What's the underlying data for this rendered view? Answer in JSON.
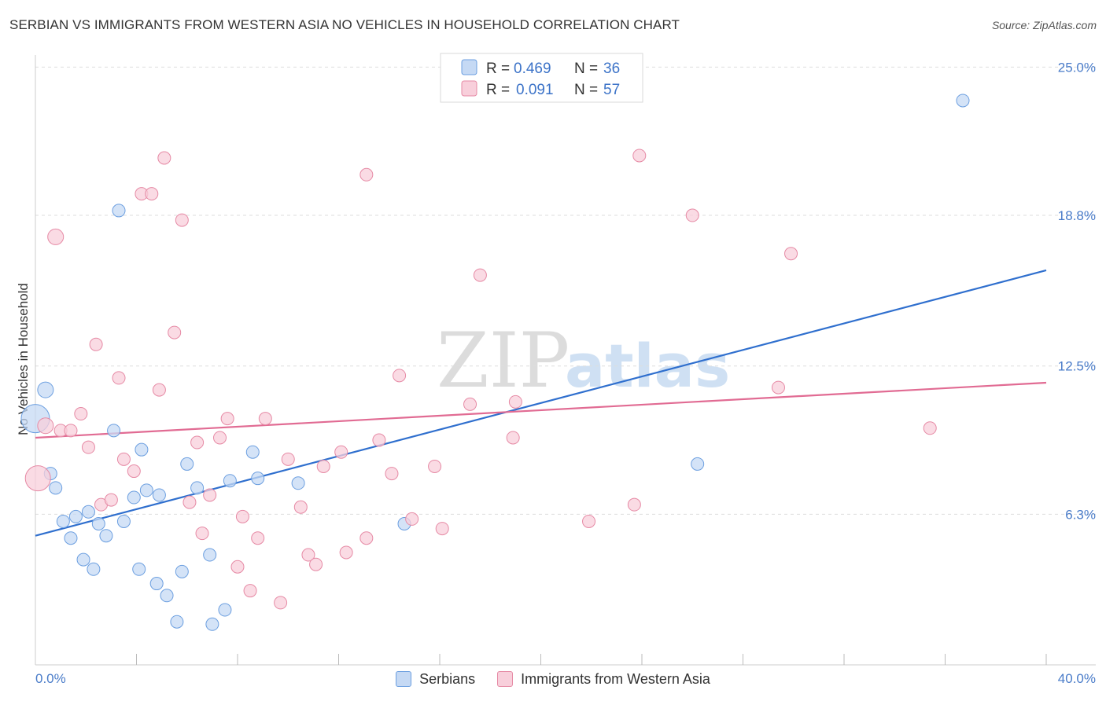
{
  "title": "SERBIAN VS IMMIGRANTS FROM WESTERN ASIA NO VEHICLES IN HOUSEHOLD CORRELATION CHART",
  "source": "Source: ZipAtlas.com",
  "watermark": {
    "zip": "ZIP",
    "atlas": "atlas"
  },
  "legend": {
    "r_label": "R =",
    "n_label": "N =",
    "rows": [
      {
        "r": "0.469",
        "n": "36"
      },
      {
        "r": "0.091",
        "n": "57"
      }
    ]
  },
  "chart_data": {
    "type": "scatter",
    "ylabel": "No Vehicles in Household",
    "xlim": [
      0,
      40
    ],
    "ylim": [
      0,
      25.9
    ],
    "x_tick_labels": [
      "0.0%",
      "40.0%"
    ],
    "y_ticks": [
      {
        "value": 6.3,
        "label": "6.3%"
      },
      {
        "value": 12.5,
        "label": "12.5%"
      },
      {
        "value": 18.8,
        "label": "18.8%"
      },
      {
        "value": 25.0,
        "label": "25.0%"
      }
    ],
    "series": [
      {
        "name": "Serbians",
        "color": "#6c9fe0",
        "fill": "#c5d9f4",
        "line_color": "#2f6fce",
        "trend": {
          "x0": 0,
          "y0": 5.4,
          "x1": 40,
          "y1": 16.5
        },
        "points": [
          [
            0.0,
            10.3,
            18
          ],
          [
            0.4,
            11.5,
            10
          ],
          [
            0.6,
            8.0,
            8
          ],
          [
            0.8,
            7.4,
            8
          ],
          [
            1.1,
            6.0,
            8
          ],
          [
            1.4,
            5.3,
            8
          ],
          [
            1.6,
            6.2,
            8
          ],
          [
            1.9,
            4.4,
            8
          ],
          [
            2.1,
            6.4,
            8
          ],
          [
            2.3,
            4.0,
            8
          ],
          [
            2.5,
            5.9,
            8
          ],
          [
            2.8,
            5.4,
            8
          ],
          [
            3.1,
            9.8,
            8
          ],
          [
            3.3,
            19.0,
            8
          ],
          [
            3.5,
            6.0,
            8
          ],
          [
            3.9,
            7.0,
            8
          ],
          [
            4.1,
            4.0,
            8
          ],
          [
            4.2,
            9.0,
            8
          ],
          [
            4.4,
            7.3,
            8
          ],
          [
            4.8,
            3.4,
            8
          ],
          [
            4.9,
            7.1,
            8
          ],
          [
            5.2,
            2.9,
            8
          ],
          [
            5.6,
            1.8,
            8
          ],
          [
            5.8,
            3.9,
            8
          ],
          [
            6.0,
            8.4,
            8
          ],
          [
            6.4,
            7.4,
            8
          ],
          [
            6.9,
            4.6,
            8
          ],
          [
            7.0,
            1.7,
            8
          ],
          [
            7.5,
            2.3,
            8
          ],
          [
            7.7,
            7.7,
            8
          ],
          [
            8.6,
            8.9,
            8
          ],
          [
            8.8,
            7.8,
            8
          ],
          [
            10.4,
            7.6,
            8
          ],
          [
            14.6,
            5.9,
            8
          ],
          [
            26.2,
            8.4,
            8
          ],
          [
            36.7,
            23.6,
            8
          ]
        ]
      },
      {
        "name": "Immigrants from Western Asia",
        "color": "#e68aa5",
        "fill": "#f8cfdb",
        "line_color": "#e16b93",
        "trend": {
          "x0": 0,
          "y0": 9.5,
          "x1": 40,
          "y1": 11.8
        },
        "points": [
          [
            0.1,
            7.8,
            16
          ],
          [
            0.4,
            10.0,
            10
          ],
          [
            0.8,
            17.9,
            10
          ],
          [
            1.0,
            9.8,
            8
          ],
          [
            1.4,
            9.8,
            8
          ],
          [
            1.8,
            10.5,
            8
          ],
          [
            2.1,
            9.1,
            8
          ],
          [
            2.4,
            13.4,
            8
          ],
          [
            2.6,
            6.7,
            8
          ],
          [
            3.0,
            6.9,
            8
          ],
          [
            3.3,
            12.0,
            8
          ],
          [
            3.5,
            8.6,
            8
          ],
          [
            3.9,
            8.1,
            8
          ],
          [
            4.2,
            19.7,
            8
          ],
          [
            4.6,
            19.7,
            8
          ],
          [
            4.9,
            11.5,
            8
          ],
          [
            5.1,
            21.2,
            8
          ],
          [
            5.5,
            13.9,
            8
          ],
          [
            5.8,
            18.6,
            8
          ],
          [
            6.1,
            6.8,
            8
          ],
          [
            6.4,
            9.3,
            8
          ],
          [
            6.6,
            5.5,
            8
          ],
          [
            6.9,
            7.1,
            8
          ],
          [
            7.3,
            9.5,
            8
          ],
          [
            7.6,
            10.3,
            8
          ],
          [
            8.0,
            4.1,
            8
          ],
          [
            8.2,
            6.2,
            8
          ],
          [
            8.5,
            3.1,
            8
          ],
          [
            8.8,
            5.3,
            8
          ],
          [
            9.1,
            10.3,
            8
          ],
          [
            9.7,
            2.6,
            8
          ],
          [
            10.0,
            8.6,
            8
          ],
          [
            10.5,
            6.6,
            8
          ],
          [
            10.8,
            4.6,
            8
          ],
          [
            11.1,
            4.2,
            8
          ],
          [
            11.4,
            8.3,
            8
          ],
          [
            12.1,
            8.9,
            8
          ],
          [
            12.3,
            4.7,
            8
          ],
          [
            13.1,
            5.3,
            8
          ],
          [
            13.1,
            20.5,
            8
          ],
          [
            13.6,
            9.4,
            8
          ],
          [
            14.1,
            8.0,
            8
          ],
          [
            14.4,
            12.1,
            8
          ],
          [
            14.9,
            6.1,
            8
          ],
          [
            15.8,
            8.3,
            8
          ],
          [
            16.1,
            5.7,
            8
          ],
          [
            17.2,
            10.9,
            8
          ],
          [
            17.6,
            16.3,
            8
          ],
          [
            18.9,
            9.5,
            8
          ],
          [
            19.0,
            11.0,
            8
          ],
          [
            21.9,
            6.0,
            8
          ],
          [
            23.7,
            6.7,
            8
          ],
          [
            23.9,
            21.3,
            8
          ],
          [
            26.0,
            18.8,
            8
          ],
          [
            29.4,
            11.6,
            8
          ],
          [
            29.9,
            17.2,
            8
          ],
          [
            35.4,
            9.9,
            8
          ]
        ]
      }
    ]
  }
}
